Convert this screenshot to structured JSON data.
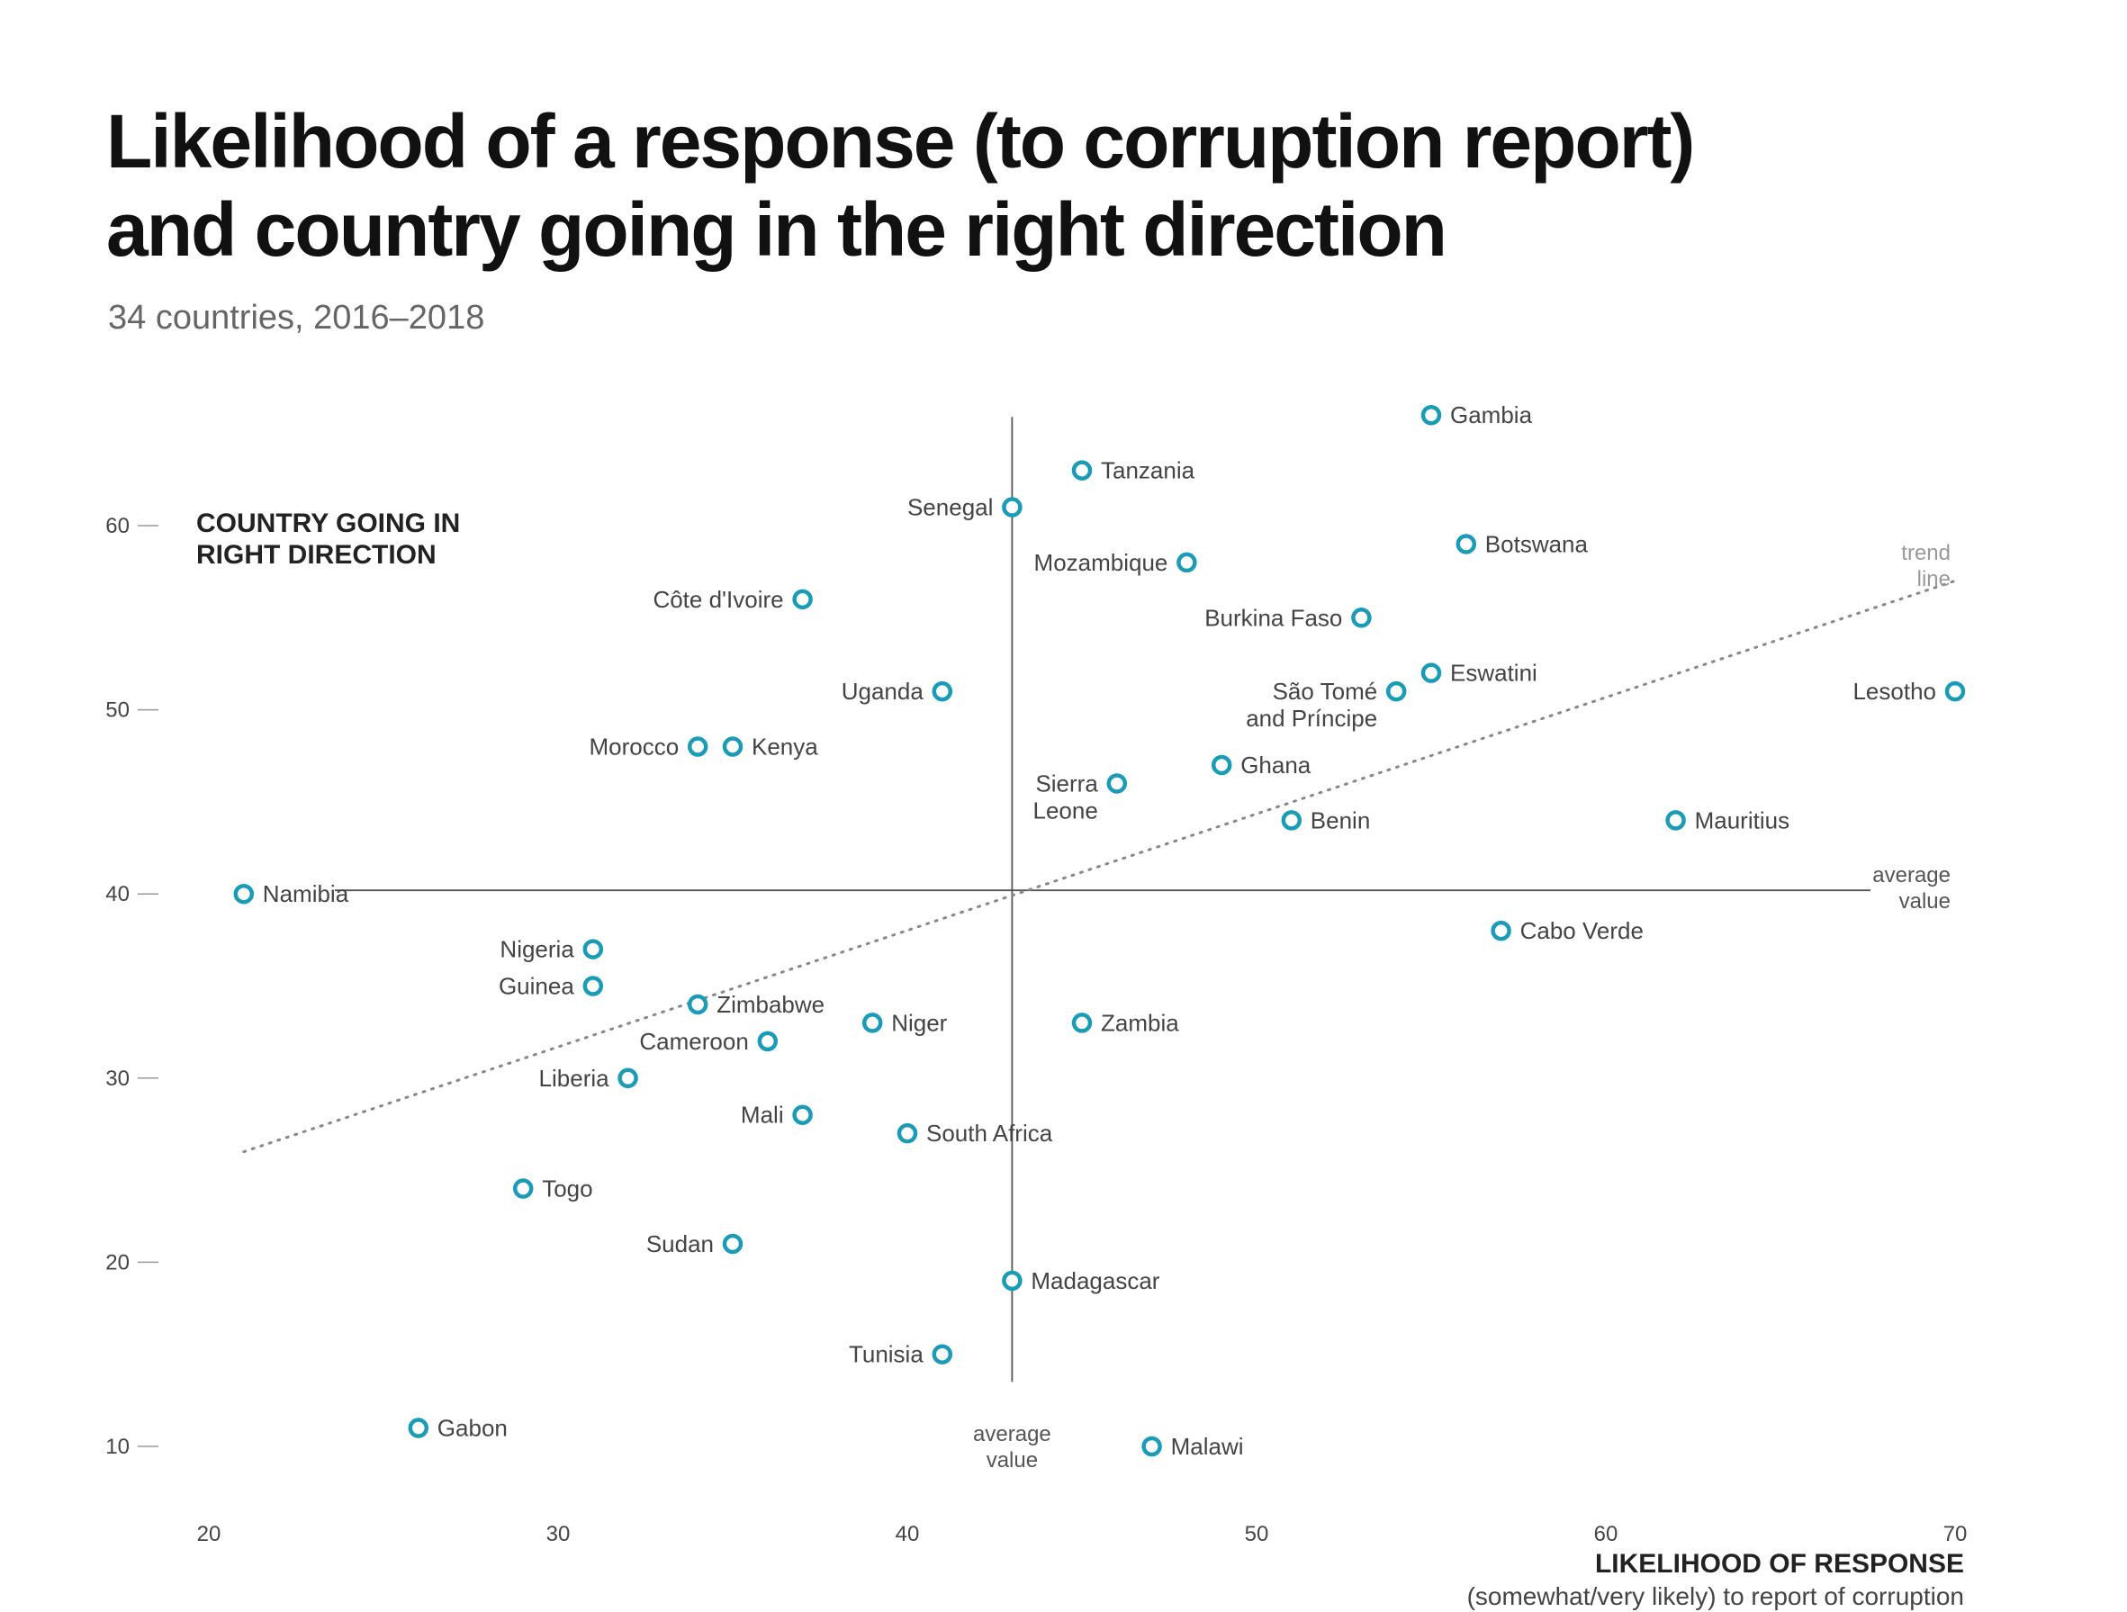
{
  "chart_data": {
    "type": "scatter",
    "title_line1": "Likelihood of a response (to corruption report)",
    "title_line2": "and country going in the right direction",
    "subtitle": "34 countries, 2016–2018",
    "xlabel": "LIKELIHOOD OF RESPONSE",
    "xlabel_sub": "(somewhat/very likely) to report of corruption",
    "ylabel_line1": "COUNTRY GOING IN",
    "ylabel_line2": "RIGHT DIRECTION",
    "xlim": [
      20,
      70
    ],
    "ylim": [
      10,
      65
    ],
    "x_ticks": [
      "20",
      "30",
      "40",
      "50",
      "60",
      "70"
    ],
    "y_ticks": [
      "10",
      "20",
      "30",
      "40",
      "50",
      "60"
    ],
    "average": {
      "x": 43,
      "y": 40
    },
    "average_x_label": [
      "average",
      "value"
    ],
    "average_y_label": [
      "average",
      "value"
    ],
    "trend_line": {
      "x": [
        21,
        70
      ],
      "y": [
        26,
        57
      ],
      "label": [
        "trend",
        "line"
      ]
    },
    "marker_color": "#1a9bb8",
    "points": [
      {
        "country": "Gambia",
        "x": 55,
        "y": 66,
        "side": "right"
      },
      {
        "country": "Tanzania",
        "x": 45,
        "y": 63,
        "side": "right"
      },
      {
        "country": "Senegal",
        "x": 43,
        "y": 61,
        "side": "left"
      },
      {
        "country": "Botswana",
        "x": 56,
        "y": 59,
        "side": "right"
      },
      {
        "country": "Mozambique",
        "x": 48,
        "y": 58,
        "side": "left"
      },
      {
        "country": "Côte d'Ivoire",
        "x": 37,
        "y": 56,
        "side": "left"
      },
      {
        "country": "Burkina Faso",
        "x": 53,
        "y": 55,
        "side": "left"
      },
      {
        "country": "Eswatini",
        "x": 55,
        "y": 52,
        "side": "right"
      },
      {
        "country": "Uganda",
        "x": 41,
        "y": 51,
        "side": "left"
      },
      {
        "country": "São Tomé",
        "country_line2": "and Príncipe",
        "x": 54,
        "y": 51,
        "side": "left"
      },
      {
        "country": "Lesotho",
        "x": 70,
        "y": 51,
        "side": "left"
      },
      {
        "country": "Morocco",
        "x": 34,
        "y": 48,
        "side": "left"
      },
      {
        "country": "Kenya",
        "x": 35,
        "y": 48,
        "side": "right"
      },
      {
        "country": "Ghana",
        "x": 49,
        "y": 47,
        "side": "right"
      },
      {
        "country": "Sierra",
        "country_line2": "Leone",
        "x": 46,
        "y": 46,
        "side": "left"
      },
      {
        "country": "Benin",
        "x": 51,
        "y": 44,
        "side": "right"
      },
      {
        "country": "Mauritius",
        "x": 62,
        "y": 44,
        "side": "right"
      },
      {
        "country": "Namibia",
        "x": 21,
        "y": 40,
        "side": "right"
      },
      {
        "country": "Cabo Verde",
        "x": 57,
        "y": 38,
        "side": "right"
      },
      {
        "country": "Nigeria",
        "x": 31,
        "y": 37,
        "side": "left"
      },
      {
        "country": "Guinea",
        "x": 31,
        "y": 35,
        "side": "left"
      },
      {
        "country": "Zimbabwe",
        "x": 34,
        "y": 34,
        "side": "right"
      },
      {
        "country": "Niger",
        "x": 39,
        "y": 33,
        "side": "right"
      },
      {
        "country": "Zambia",
        "x": 45,
        "y": 33,
        "side": "right"
      },
      {
        "country": "Cameroon",
        "x": 36,
        "y": 32,
        "side": "left"
      },
      {
        "country": "Liberia",
        "x": 32,
        "y": 30,
        "side": "left"
      },
      {
        "country": "Mali",
        "x": 37,
        "y": 28,
        "side": "left"
      },
      {
        "country": "South Africa",
        "x": 40,
        "y": 27,
        "side": "right"
      },
      {
        "country": "Togo",
        "x": 29,
        "y": 24,
        "side": "right"
      },
      {
        "country": "Sudan",
        "x": 35,
        "y": 21,
        "side": "left"
      },
      {
        "country": "Madagascar",
        "x": 43,
        "y": 19,
        "side": "right"
      },
      {
        "country": "Tunisia",
        "x": 41,
        "y": 15,
        "side": "left"
      },
      {
        "country": "Gabon",
        "x": 26,
        "y": 11,
        "side": "right"
      },
      {
        "country": "Malawi",
        "x": 47,
        "y": 10,
        "side": "right"
      }
    ]
  }
}
